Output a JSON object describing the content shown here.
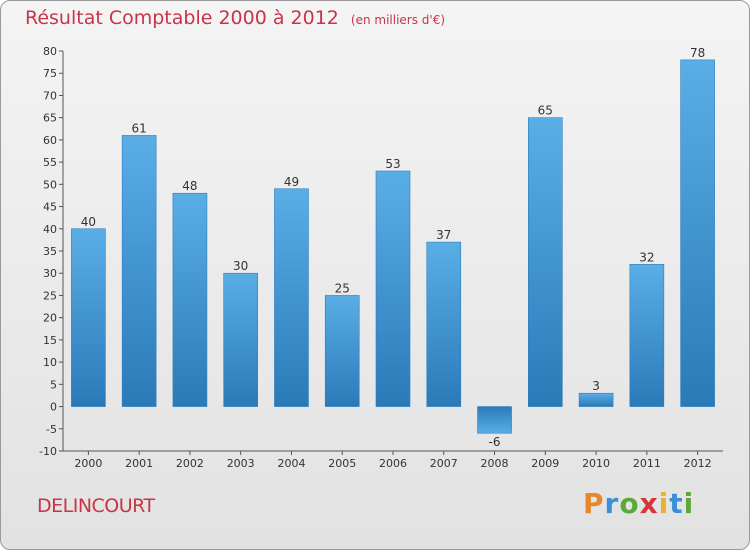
{
  "header": {
    "title": "Résultat Comptable 2000 à 2012",
    "subtitle": "(en milliers d'€)"
  },
  "footer": {
    "commune": "DELINCOURT",
    "brand": "Proxiti"
  },
  "colors": {
    "title": "#c8344a",
    "bar_light": "#5aaee6",
    "bar_dark": "#2a7ab8",
    "brand_letters": [
      "#e8862a",
      "#3a8fd6",
      "#5aaa3a",
      "#d6363a",
      "#e8b32a",
      "#3a8fd6",
      "#5aaa3a"
    ]
  },
  "chart_data": {
    "type": "bar",
    "title": "Résultat Comptable 2000 à 2012",
    "subtitle": "(en milliers d'€)",
    "categories": [
      "2000",
      "2001",
      "2002",
      "2003",
      "2004",
      "2005",
      "2006",
      "2007",
      "2008",
      "2009",
      "2010",
      "2011",
      "2012"
    ],
    "values": [
      40,
      61,
      48,
      30,
      49,
      25,
      53,
      37,
      -6,
      65,
      3,
      32,
      78
    ],
    "ylim": [
      -10,
      80
    ],
    "yticks": [
      -10,
      -5,
      0,
      5,
      10,
      15,
      20,
      25,
      30,
      35,
      40,
      45,
      50,
      55,
      60,
      65,
      70,
      75,
      80
    ],
    "grid": false,
    "data_labels": true
  }
}
